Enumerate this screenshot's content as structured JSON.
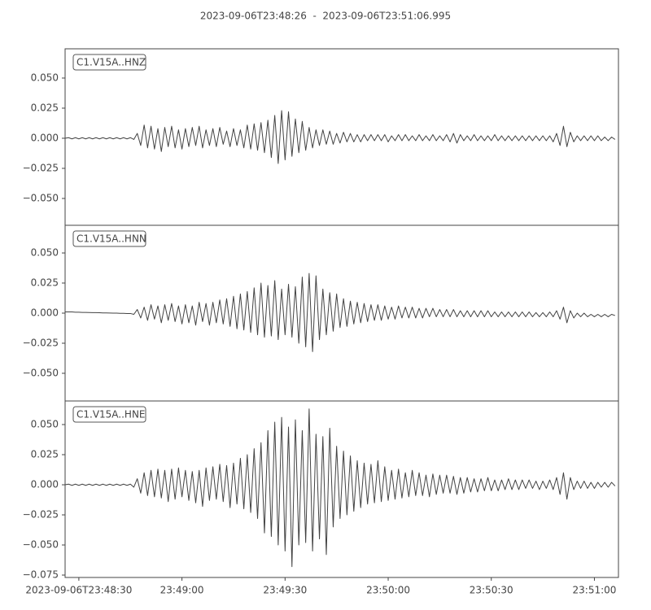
{
  "chart_data": {
    "type": "line",
    "title": "2023-09-06T23:48:26  -  2023-09-06T23:51:06.995",
    "x": [
      0,
      1,
      2,
      3,
      4,
      5,
      6,
      7,
      8,
      9,
      10,
      11,
      12,
      13,
      14,
      15,
      16,
      17,
      18,
      19,
      20,
      21,
      22,
      23,
      24,
      25,
      26,
      27,
      28,
      29,
      30,
      31,
      32,
      33,
      34,
      35,
      36,
      37,
      38,
      39,
      40,
      41,
      42,
      43,
      44,
      45,
      46,
      47,
      48,
      49,
      50,
      51,
      52,
      53,
      54,
      55,
      56,
      57,
      58,
      59,
      60,
      61,
      62,
      63,
      64,
      65,
      66,
      67,
      68,
      69,
      70,
      71,
      72,
      73,
      74,
      75,
      76,
      77,
      78,
      79,
      80,
      81,
      82,
      83,
      84,
      85,
      86,
      87,
      88,
      89,
      90,
      91,
      92,
      93,
      94,
      95,
      96,
      97,
      98,
      99,
      100,
      101,
      102,
      103,
      104,
      105,
      106,
      107,
      108,
      109,
      110,
      111,
      112,
      113,
      114,
      115,
      116,
      117,
      118,
      119,
      120,
      121,
      122,
      123,
      124,
      125,
      126,
      127,
      128,
      129,
      130,
      131,
      132,
      133,
      134,
      135,
      136,
      137,
      138,
      139,
      140,
      141,
      142,
      143,
      144,
      145,
      146,
      147,
      148,
      149,
      150,
      151,
      152,
      153,
      154,
      155,
      156,
      157,
      158,
      159,
      160
    ],
    "xlim": [
      0,
      160.995
    ],
    "xticks": [
      {
        "value": 4,
        "label": "2023-09-06T23:48:30"
      },
      {
        "value": 34,
        "label": "23:49:00"
      },
      {
        "value": 64,
        "label": "23:49:30"
      },
      {
        "value": 94,
        "label": "23:50:00"
      },
      {
        "value": 124,
        "label": "23:50:30"
      },
      {
        "value": 154,
        "label": "23:51:00"
      }
    ],
    "series": [
      {
        "name": "C1.V15A..HNZ",
        "color": "#424242",
        "ylim": [
          -0.0723,
          0.0743
        ],
        "yticks": [
          {
            "value": -0.05,
            "label": "−0.050"
          },
          {
            "value": -0.025,
            "label": "−0.025"
          },
          {
            "value": 0,
            "label": "0.000"
          },
          {
            "value": 0.025,
            "label": "0.025"
          },
          {
            "value": 0.05,
            "label": "0.050"
          }
        ],
        "values": [
          0,
          0.0005,
          -0.0005,
          0.0005,
          -0.0005,
          0.0005,
          -0.0005,
          0.0005,
          -0.0005,
          0.0005,
          -0.0005,
          0.0005,
          -0.0005,
          0.0005,
          -0.0005,
          0.0005,
          -0.0005,
          0.0005,
          -0.0005,
          0.0005,
          -0.001,
          0.004,
          -0.006,
          0.011,
          -0.008,
          0.01,
          -0.009,
          0.008,
          -0.011,
          0.009,
          -0.007,
          0.01,
          -0.008,
          0.007,
          -0.009,
          0.008,
          -0.007,
          0.009,
          -0.006,
          0.01,
          -0.008,
          0.007,
          -0.006,
          0.008,
          -0.007,
          0.009,
          -0.005,
          0.006,
          -0.007,
          0.008,
          -0.006,
          0.007,
          -0.008,
          0.011,
          -0.009,
          0.012,
          -0.01,
          0.013,
          -0.012,
          0.015,
          -0.016,
          0.019,
          -0.021,
          0.023,
          -0.018,
          0.022,
          -0.015,
          0.016,
          -0.012,
          0.014,
          -0.01,
          0.009,
          -0.008,
          0.007,
          -0.006,
          0.007,
          -0.005,
          0.006,
          -0.005,
          0.004,
          -0.004,
          0.005,
          -0.003,
          0.004,
          -0.003,
          0.003,
          -0.003,
          0.003,
          -0.002,
          0.003,
          -0.002,
          0.003,
          -0.002,
          0.003,
          -0.003,
          0.002,
          -0.002,
          0.003,
          -0.002,
          0.003,
          -0.002,
          0.002,
          -0.002,
          0.003,
          -0.002,
          0.002,
          -0.002,
          0.003,
          -0.002,
          0.002,
          -0.002,
          0.003,
          -0.003,
          0.004,
          -0.004,
          0.003,
          -0.002,
          0.002,
          -0.002,
          0.003,
          -0.002,
          0.002,
          -0.002,
          0.002,
          -0.002,
          0.003,
          -0.002,
          0.002,
          -0.002,
          0.002,
          -0.002,
          0.002,
          -0.002,
          0.002,
          -0.002,
          0.002,
          -0.002,
          0.002,
          -0.002,
          0.002,
          -0.002,
          0.002,
          -0.003,
          0.004,
          -0.006,
          0.01,
          -0.007,
          0.005,
          -0.003,
          0.002,
          -0.002,
          0.002,
          -0.002,
          0.002,
          -0.002,
          0.002,
          -0.002,
          0.001,
          -0.002,
          0.001,
          -0.001
        ]
      },
      {
        "name": "C1.V15A..HNN",
        "color": "#424242",
        "ylim": [
          -0.073,
          0.073
        ],
        "yticks": [
          {
            "value": -0.05,
            "label": "−0.050"
          },
          {
            "value": -0.025,
            "label": "−0.025"
          },
          {
            "value": 0,
            "label": "0.000"
          },
          {
            "value": 0.025,
            "label": "0.025"
          },
          {
            "value": 0.05,
            "label": "0.050"
          }
        ],
        "values": [
          0.001,
          0.001,
          0.001,
          0.0008,
          0.0008,
          0.0006,
          0.0006,
          0.0005,
          0.0004,
          0.0004,
          0.0003,
          0.0002,
          0.0002,
          0.0001,
          0,
          0,
          -0.0002,
          -0.0002,
          -0.0003,
          -0.0003,
          -0.001,
          0.003,
          -0.004,
          0.005,
          -0.006,
          0.007,
          -0.005,
          0.006,
          -0.008,
          0.007,
          -0.006,
          0.008,
          -0.007,
          0.006,
          -0.009,
          0.007,
          -0.008,
          0.006,
          -0.01,
          0.009,
          -0.007,
          0.008,
          -0.01,
          0.009,
          -0.008,
          0.011,
          -0.009,
          0.012,
          -0.011,
          0.014,
          -0.013,
          0.016,
          -0.014,
          0.018,
          -0.016,
          0.021,
          -0.018,
          0.025,
          -0.02,
          0.023,
          -0.019,
          0.027,
          -0.022,
          0.02,
          -0.018,
          0.024,
          -0.02,
          0.022,
          -0.025,
          0.03,
          -0.028,
          0.033,
          -0.032,
          0.031,
          -0.022,
          0.02,
          -0.018,
          0.017,
          -0.015,
          0.016,
          -0.012,
          0.012,
          -0.011,
          0.01,
          -0.009,
          0.009,
          -0.008,
          0.008,
          -0.007,
          0.007,
          -0.006,
          0.007,
          -0.006,
          0.006,
          -0.005,
          0.005,
          -0.005,
          0.006,
          -0.004,
          0.005,
          -0.004,
          0.005,
          -0.004,
          0.004,
          -0.004,
          0.004,
          -0.003,
          0.004,
          -0.003,
          0.003,
          -0.003,
          0.003,
          -0.003,
          0.003,
          -0.003,
          0.002,
          -0.003,
          0.002,
          -0.003,
          0.002,
          -0.003,
          0.002,
          -0.003,
          0.002,
          -0.003,
          0.001,
          -0.003,
          0.001,
          -0.003,
          0.001,
          -0.003,
          0.001,
          -0.003,
          0.001,
          -0.003,
          0.001,
          -0.003,
          0.0005,
          -0.003,
          0.0005,
          -0.003,
          0.001,
          -0.003,
          0.002,
          -0.005,
          0.005,
          -0.008,
          0.002,
          -0.004,
          0,
          -0.003,
          0,
          -0.003,
          -0.001,
          -0.003,
          -0.001,
          -0.003,
          -0.001,
          -0.003,
          -0.001,
          -0.002
        ]
      },
      {
        "name": "C1.V15A..HNE",
        "color": "#424242",
        "ylim": [
          -0.077,
          0.0696
        ],
        "yticks": [
          {
            "value": -0.075,
            "label": "−0.075"
          },
          {
            "value": -0.05,
            "label": "−0.050"
          },
          {
            "value": -0.025,
            "label": "−0.025"
          },
          {
            "value": 0,
            "label": "0.000"
          },
          {
            "value": 0.025,
            "label": "0.025"
          },
          {
            "value": 0.05,
            "label": "0.050"
          }
        ],
        "values": [
          0,
          0.0005,
          -0.0005,
          0.0005,
          -0.0005,
          0.0005,
          -0.0005,
          0.0005,
          -0.0005,
          0.0005,
          -0.0005,
          0.0005,
          -0.0005,
          0.0005,
          -0.0005,
          0.0005,
          -0.0005,
          0.0005,
          -0.0005,
          0.0005,
          -0.002,
          0.005,
          -0.007,
          0.01,
          -0.009,
          0.012,
          -0.01,
          0.013,
          -0.011,
          0.012,
          -0.014,
          0.013,
          -0.012,
          0.014,
          -0.01,
          0.012,
          -0.013,
          0.011,
          -0.015,
          0.012,
          -0.018,
          0.014,
          -0.013,
          0.015,
          -0.012,
          0.017,
          -0.014,
          0.016,
          -0.019,
          0.018,
          -0.016,
          0.022,
          -0.02,
          0.025,
          -0.023,
          0.03,
          -0.028,
          0.035,
          -0.04,
          0.045,
          -0.043,
          0.052,
          -0.05,
          0.056,
          -0.055,
          0.048,
          -0.068,
          0.054,
          -0.05,
          0.045,
          -0.048,
          0.063,
          -0.055,
          0.042,
          -0.045,
          0.04,
          -0.058,
          0.047,
          -0.035,
          0.032,
          -0.028,
          0.028,
          -0.025,
          0.024,
          -0.022,
          0.02,
          -0.019,
          0.018,
          -0.016,
          0.017,
          -0.015,
          0.02,
          -0.014,
          0.015,
          -0.013,
          0.012,
          -0.012,
          0.013,
          -0.011,
          0.01,
          -0.01,
          0.012,
          -0.009,
          0.01,
          -0.009,
          0.008,
          -0.01,
          0.009,
          -0.008,
          0.008,
          -0.007,
          0.008,
          -0.007,
          0.007,
          -0.008,
          0.006,
          -0.007,
          0.006,
          -0.006,
          0.005,
          -0.006,
          0.005,
          -0.005,
          0.006,
          -0.005,
          0.004,
          -0.005,
          0.004,
          -0.004,
          0.005,
          -0.004,
          0.004,
          -0.004,
          0.004,
          -0.003,
          0.004,
          -0.003,
          0.003,
          -0.004,
          0.003,
          -0.003,
          0.004,
          -0.004,
          0.006,
          -0.008,
          0.01,
          -0.012,
          0.006,
          -0.004,
          0.003,
          -0.003,
          0.003,
          -0.003,
          0.002,
          -0.003,
          0.002,
          -0.002,
          0.002,
          -0.002,
          0.002,
          -0.001
        ]
      }
    ]
  }
}
